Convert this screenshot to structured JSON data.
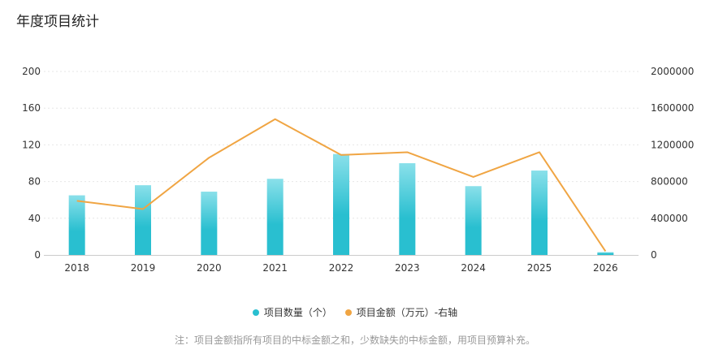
{
  "title": "年度项目统计",
  "footnote": "注：项目金额指所有项目的中标金额之和，少数缺失的中标金额，用项目预算补充。",
  "colors": {
    "bar_top": "#8ae0ea",
    "bar_bottom": "#29bfd0",
    "line": "#f0a543",
    "grid": "#e6e6e6"
  },
  "chart_data": {
    "type": "bar+line",
    "title": "年度项目统计",
    "categories": [
      "2018",
      "2019",
      "2020",
      "2021",
      "2022",
      "2023",
      "2024",
      "2025",
      "2026"
    ],
    "y_left": {
      "min": 0,
      "max": 200,
      "ticks": [
        "0",
        "40",
        "80",
        "120",
        "160",
        "200"
      ]
    },
    "y_right": {
      "min": 0,
      "max": 2000000,
      "ticks": [
        "0",
        "400000",
        "800000",
        "1200000",
        "1600000",
        "2000000"
      ]
    },
    "series": [
      {
        "name": "项目数量（个）",
        "type": "bar",
        "axis": "left",
        "values": [
          65,
          76,
          69,
          83,
          110,
          100,
          75,
          92,
          3
        ]
      },
      {
        "name": "项目金额（万元）-右轴",
        "type": "line",
        "axis": "right",
        "values": [
          590000,
          500000,
          1060000,
          1480000,
          1090000,
          1120000,
          850000,
          1120000,
          40000
        ]
      }
    ],
    "grid": true,
    "legend_position": "bottom-center"
  }
}
